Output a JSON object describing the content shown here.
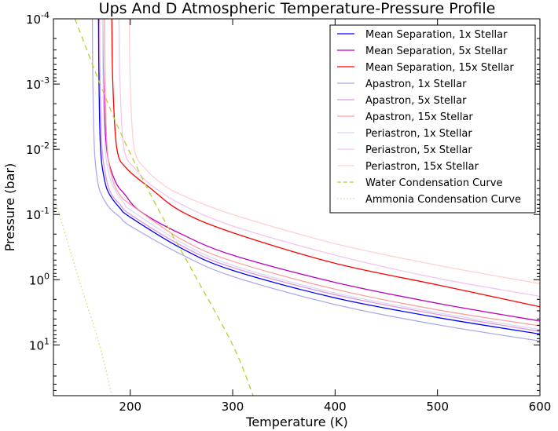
{
  "chart_data": {
    "type": "line",
    "title": "Ups And D Atmospheric Temperature-Pressure Profile",
    "xlabel": "Temperature (K)",
    "ylabel": "Pressure (bar)",
    "xlim": [
      125,
      600
    ],
    "ylim": [
      60,
      0.0001
    ],
    "y_scale": "log",
    "y_inverted": true,
    "x_ticks": [
      200,
      300,
      400,
      500,
      600
    ],
    "x_tick_labels": [
      "200",
      "300",
      "400",
      "500",
      "600"
    ],
    "y_ticks": [
      {
        "value": 0.0001,
        "base": "10",
        "exp": "-4"
      },
      {
        "value": 0.001,
        "base": "10",
        "exp": "-3"
      },
      {
        "value": 0.01,
        "base": "10",
        "exp": "-2"
      },
      {
        "value": 0.1,
        "base": "10",
        "exp": "-1"
      },
      {
        "value": 1,
        "base": "10",
        "exp": "0"
      },
      {
        "value": 10,
        "base": "10",
        "exp": "1"
      }
    ],
    "grid": false,
    "legend_position": "top-right",
    "series": [
      {
        "name": "Mean Separation, 1x Stellar",
        "color": "#0000ff",
        "style": "solid",
        "points": [
          [
            169,
            0.0001
          ],
          [
            169.5,
            0.001
          ],
          [
            171,
            0.01
          ],
          [
            175,
            0.03
          ],
          [
            180,
            0.05
          ],
          [
            190,
            0.08
          ],
          [
            200,
            0.11
          ],
          [
            250,
            0.33
          ],
          [
            300,
            0.72
          ],
          [
            400,
            1.9
          ],
          [
            500,
            3.8
          ],
          [
            600,
            6.8
          ]
        ]
      },
      {
        "name": "Mean Separation, 5x Stellar",
        "color": "#bb00bb",
        "style": "solid",
        "points": [
          [
            173,
            0.0001
          ],
          [
            174,
            0.001
          ],
          [
            177,
            0.01
          ],
          [
            185,
            0.03
          ],
          [
            195,
            0.05
          ],
          [
            210,
            0.09
          ],
          [
            250,
            0.2
          ],
          [
            300,
            0.42
          ],
          [
            400,
            1.1
          ],
          [
            500,
            2.3
          ],
          [
            600,
            4.3
          ]
        ]
      },
      {
        "name": "Mean Separation, 15x Stellar",
        "color": "#ff0000",
        "style": "solid",
        "points": [
          [
            182,
            0.0001
          ],
          [
            183,
            0.001
          ],
          [
            187,
            0.01
          ],
          [
            197,
            0.02
          ],
          [
            220,
            0.04
          ],
          [
            250,
            0.09
          ],
          [
            300,
            0.19
          ],
          [
            400,
            0.56
          ],
          [
            500,
            1.2
          ],
          [
            600,
            2.6
          ]
        ]
      },
      {
        "name": "Apastron, 1x Stellar",
        "color": "#aaaaee",
        "style": "solid",
        "points": [
          [
            163,
            0.0001
          ],
          [
            163.5,
            0.001
          ],
          [
            165,
            0.01
          ],
          [
            168,
            0.03
          ],
          [
            172,
            0.05
          ],
          [
            180,
            0.08
          ],
          [
            190,
            0.11
          ],
          [
            200,
            0.15
          ],
          [
            250,
            0.41
          ],
          [
            300,
            0.89
          ],
          [
            400,
            2.4
          ],
          [
            500,
            4.9
          ],
          [
            600,
            8.7
          ]
        ]
      },
      {
        "name": "Apastron, 5x Stellar",
        "color": "#dd99dd",
        "style": "solid",
        "points": [
          [
            170,
            0.0001
          ],
          [
            170.5,
            0.001
          ],
          [
            172.5,
            0.01
          ],
          [
            177,
            0.03
          ],
          [
            182,
            0.05
          ],
          [
            190,
            0.07
          ],
          [
            200,
            0.1
          ],
          [
            250,
            0.3
          ],
          [
            300,
            0.65
          ],
          [
            400,
            1.7
          ],
          [
            500,
            3.4
          ],
          [
            600,
            6.2
          ]
        ]
      },
      {
        "name": "Apastron, 15x Stellar",
        "color": "#ffa0a0",
        "style": "solid",
        "points": [
          [
            175,
            0.0001
          ],
          [
            175.5,
            0.001
          ],
          [
            177.5,
            0.01
          ],
          [
            183,
            0.03
          ],
          [
            190,
            0.05
          ],
          [
            200,
            0.07
          ],
          [
            250,
            0.24
          ],
          [
            300,
            0.52
          ],
          [
            400,
            1.4
          ],
          [
            500,
            2.9
          ],
          [
            600,
            5.1
          ]
        ]
      },
      {
        "name": "Periastron, 1x Stellar",
        "color": "#d8d8f8",
        "style": "solid",
        "points": [
          [
            173,
            0.0001
          ],
          [
            173.5,
            0.001
          ],
          [
            175.5,
            0.01
          ],
          [
            181,
            0.03
          ],
          [
            188,
            0.05
          ],
          [
            195,
            0.07
          ],
          [
            200,
            0.085
          ],
          [
            250,
            0.27
          ],
          [
            300,
            0.6
          ],
          [
            400,
            1.6
          ],
          [
            500,
            3.2
          ],
          [
            600,
            5.8
          ]
        ]
      },
      {
        "name": "Periastron, 5x Stellar",
        "color": "#f4c4f4",
        "style": "solid",
        "points": [
          [
            189,
            0.0001
          ],
          [
            190,
            0.001
          ],
          [
            194,
            0.01
          ],
          [
            205,
            0.02
          ],
          [
            220,
            0.035
          ],
          [
            250,
            0.07
          ],
          [
            300,
            0.15
          ],
          [
            400,
            0.42
          ],
          [
            500,
            0.95
          ],
          [
            600,
            1.8
          ]
        ]
      },
      {
        "name": "Periastron, 15x Stellar",
        "color": "#ffd0d0",
        "style": "solid",
        "points": [
          [
            199,
            0.0001
          ],
          [
            200,
            0.001
          ],
          [
            204,
            0.01
          ],
          [
            215,
            0.02
          ],
          [
            230,
            0.033
          ],
          [
            250,
            0.05
          ],
          [
            300,
            0.1
          ],
          [
            400,
            0.28
          ],
          [
            500,
            0.6
          ],
          [
            600,
            1.15
          ]
        ]
      },
      {
        "name": "Water Condensation Curve",
        "color": "#bbcc33",
        "style": "dashed",
        "points": [
          [
            146,
            0.0001
          ],
          [
            183,
            0.003
          ],
          [
            220,
            0.05
          ],
          [
            260,
            0.7
          ],
          [
            300,
            10
          ],
          [
            320,
            60
          ]
        ]
      },
      {
        "name": "Ammonia Condensation Curve",
        "color": "#ccdd77",
        "style": "dotted",
        "points": [
          [
            125,
            0.05
          ],
          [
            150,
            1
          ],
          [
            170,
            10
          ],
          [
            182,
            60
          ]
        ]
      }
    ]
  }
}
